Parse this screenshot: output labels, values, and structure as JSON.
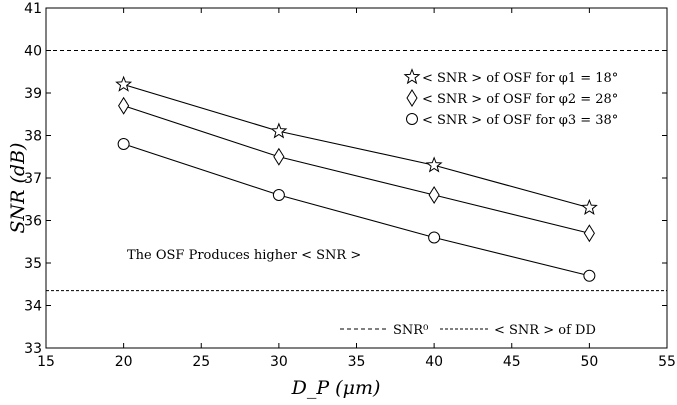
{
  "chart_data": {
    "type": "line",
    "xlabel": "D_P (μm)",
    "ylabel": "SNR (dB)",
    "xlim": [
      15,
      55
    ],
    "ylim": [
      33,
      41
    ],
    "xticks": [
      "15",
      "20",
      "25",
      "30",
      "35",
      "40",
      "45",
      "50",
      "55"
    ],
    "yticks": [
      "33",
      "34",
      "35",
      "36",
      "37",
      "38",
      "39",
      "40",
      "41"
    ],
    "grid": false,
    "legend_position": "top-right",
    "x": [
      20,
      30,
      40,
      50
    ],
    "series": [
      {
        "name": "< SNR > of OSF for φ1 = 18°",
        "marker": "star",
        "values": [
          39.2,
          38.1,
          37.3,
          36.3
        ]
      },
      {
        "name": "< SNR > of OSF for φ2 = 28°",
        "marker": "diamond",
        "values": [
          38.7,
          37.5,
          36.6,
          35.7
        ]
      },
      {
        "name": "< SNR > of OSF for φ3 = 38°",
        "marker": "circle",
        "values": [
          37.8,
          36.6,
          35.6,
          34.7
        ]
      }
    ],
    "reference_lines": [
      {
        "name": "SNR⁰",
        "y": 40.0,
        "style": "dashed"
      },
      {
        "name": "< SNR > of DD",
        "y": 34.35,
        "style": "dashed"
      }
    ],
    "annotation": "The OSF Produces higher < SNR >",
    "bottom_legend_position": "bottom-right"
  }
}
